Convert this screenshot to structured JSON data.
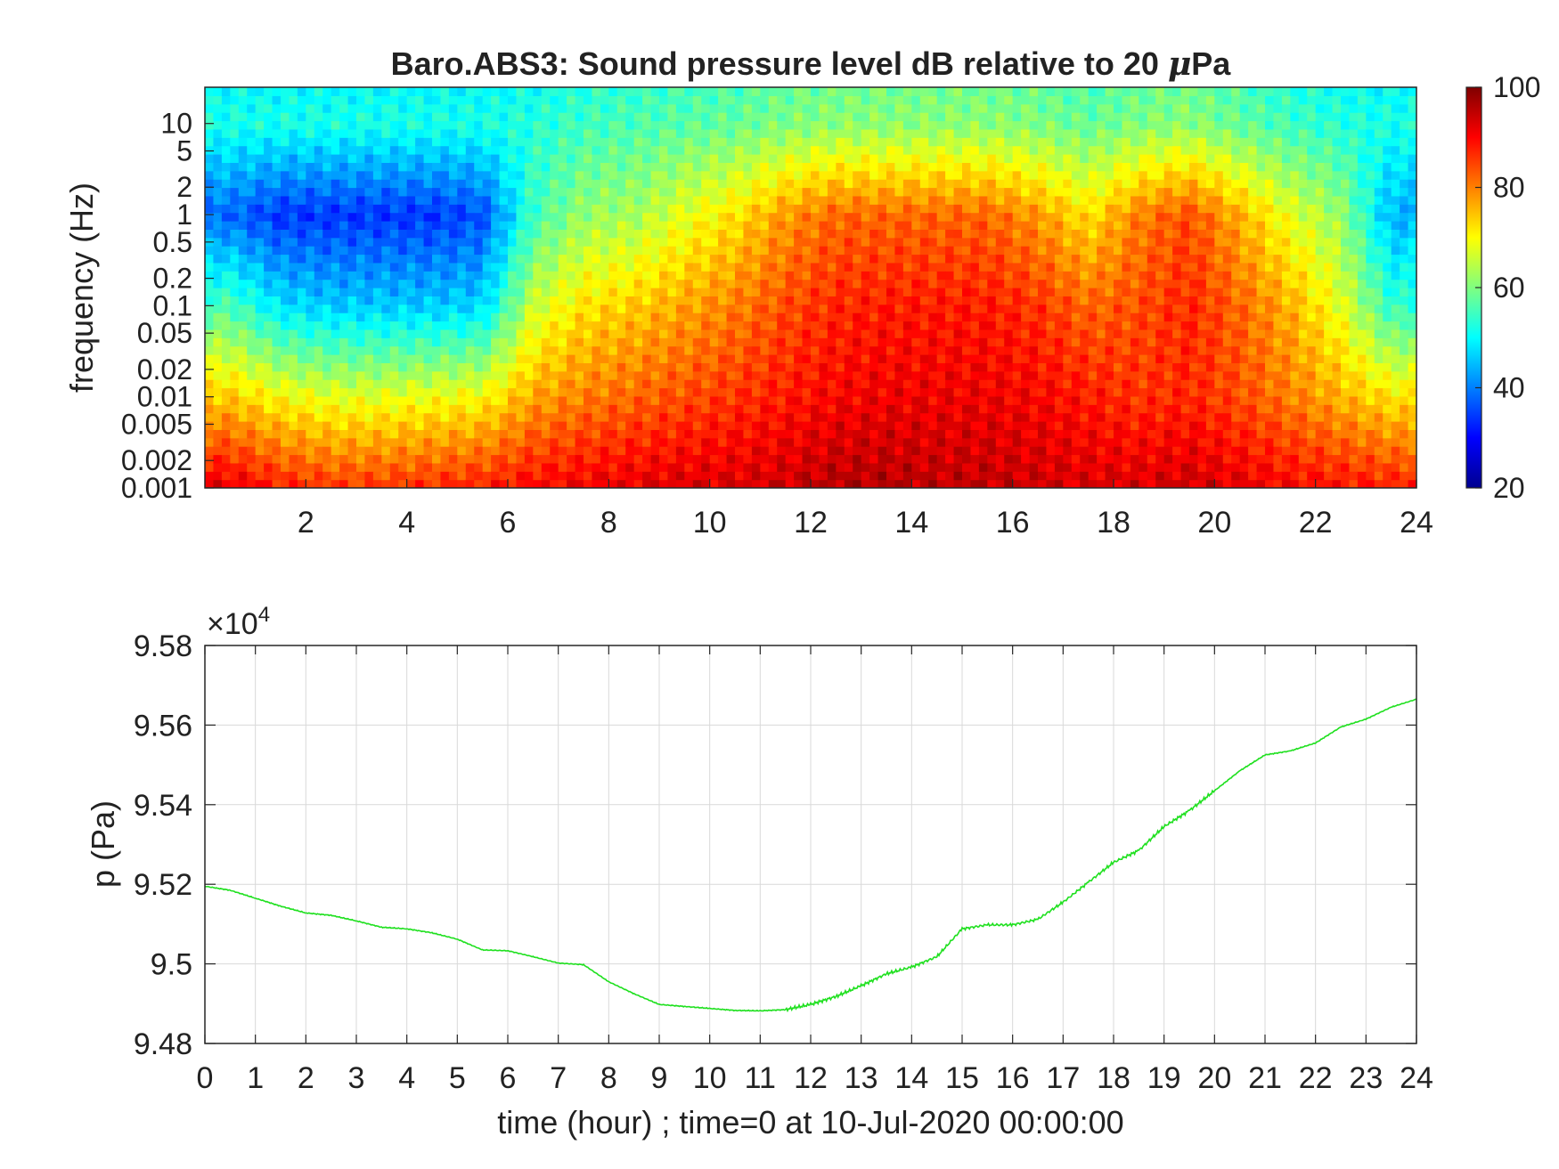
{
  "figure": {
    "title_main": "Baro.ABS3: Sound pressure level dB relative to 20 ",
    "title_mu": "μ",
    "title_end": "Pa"
  },
  "colors": {
    "trace": "#1fe01f",
    "axis": "#262626",
    "grid": "#d9d9d9"
  },
  "chart_data": [
    {
      "type": "heatmap",
      "title": "Baro.ABS3: Sound pressure level dB relative to 20 μPa",
      "xlabel": "",
      "ylabel": "frequency (Hz)",
      "x_range": [
        0,
        24
      ],
      "x_ticks": [
        2,
        4,
        6,
        8,
        10,
        12,
        14,
        16,
        18,
        20,
        22,
        24
      ],
      "x_tick_labels": [
        "2",
        "4",
        "6",
        "8",
        "10",
        "12",
        "14",
        "16",
        "18",
        "20",
        "22",
        "24"
      ],
      "y_scale": "log",
      "y_range": [
        0.001,
        25
      ],
      "y_ticks": [
        0.001,
        0.002,
        0.005,
        0.01,
        0.02,
        0.05,
        0.1,
        0.2,
        0.5,
        1,
        2,
        5,
        10
      ],
      "y_tick_labels": [
        "0.001",
        "0.002",
        "0.005",
        "0.01",
        "0.02",
        "0.05",
        "0.1",
        "0.2",
        "0.5",
        "1",
        "2",
        "5",
        "10"
      ],
      "colorbar": {
        "colormap": "jet",
        "range": [
          20,
          100
        ],
        "ticks": [
          20,
          40,
          60,
          80,
          100
        ],
        "tick_labels": [
          "20",
          "40",
          "60",
          "80",
          "100"
        ]
      },
      "hours": [
        0.5,
        1.5,
        2.5,
        3.5,
        4.5,
        5.5,
        6.5,
        7.5,
        8.5,
        9.5,
        10.5,
        11.5,
        12.5,
        13.5,
        14.5,
        15.5,
        16.5,
        17.5,
        18.5,
        19.5,
        20.5,
        21.5,
        22.5,
        23.5
      ],
      "level_at_0.001Hz_dB": [
        92,
        88,
        86,
        86,
        87,
        88,
        90,
        91,
        92,
        93,
        93,
        94,
        96,
        96,
        95,
        95,
        94,
        93,
        93,
        94,
        92,
        90,
        89,
        88
      ],
      "level_at_0.01Hz_dB": [
        74,
        70,
        68,
        68,
        69,
        70,
        77,
        80,
        82,
        84,
        86,
        88,
        90,
        91,
        91,
        91,
        90,
        88,
        86,
        87,
        84,
        80,
        76,
        72
      ],
      "level_at_0.1Hz_dB": [
        56,
        48,
        46,
        46,
        46,
        47,
        66,
        72,
        74,
        77,
        80,
        84,
        87,
        88,
        88,
        88,
        86,
        82,
        84,
        87,
        82,
        76,
        68,
        54
      ],
      "level_at_1Hz_dB": [
        38,
        34,
        34,
        34,
        34,
        36,
        55,
        62,
        63,
        68,
        72,
        78,
        82,
        82,
        82,
        82,
        78,
        72,
        80,
        84,
        76,
        68,
        62,
        44
      ],
      "level_at_10Hz_dB": [
        52,
        52,
        52,
        52,
        52,
        52,
        53,
        55,
        56,
        57,
        58,
        60,
        61,
        61,
        61,
        61,
        60,
        58,
        60,
        61,
        58,
        55,
        53,
        52
      ]
    },
    {
      "type": "line",
      "title": "",
      "xlabel": "time (hour) ; time=0 at 10-Jul-2020 00:00:00",
      "ylabel": "p (Pa)",
      "y_multiplier_base": "×10",
      "y_multiplier_exp": "4",
      "xlim": [
        0,
        24
      ],
      "ylim": [
        9.48,
        9.58
      ],
      "x_ticks": [
        0,
        1,
        2,
        3,
        4,
        5,
        6,
        7,
        8,
        9,
        10,
        11,
        12,
        13,
        14,
        15,
        16,
        17,
        18,
        19,
        20,
        21,
        22,
        23,
        24
      ],
      "x_tick_labels": [
        "0",
        "1",
        "2",
        "3",
        "4",
        "5",
        "6",
        "7",
        "8",
        "9",
        "10",
        "11",
        "12",
        "13",
        "14",
        "15",
        "16",
        "17",
        "18",
        "19",
        "20",
        "21",
        "22",
        "23",
        "24"
      ],
      "y_ticks": [
        9.48,
        9.5,
        9.52,
        9.54,
        9.56,
        9.58
      ],
      "y_tick_labels": [
        "9.48",
        "9.5",
        "9.52",
        "9.54",
        "9.56",
        "9.58"
      ],
      "grid": true,
      "series": [
        {
          "x": [
            0,
            0.5,
            1,
            1.5,
            2,
            2.5,
            3,
            3.5,
            4,
            4.5,
            5,
            5.5,
            6,
            6.5,
            7,
            7.5,
            8,
            8.5,
            9,
            9.5,
            10,
            10.5,
            11,
            11.5,
            12,
            12.5,
            13,
            13.5,
            14,
            14.5,
            15,
            15.5,
            16,
            16.5,
            17,
            17.5,
            18,
            18.5,
            19,
            19.5,
            20,
            20.5,
            21,
            21.5,
            22,
            22.5,
            23,
            23.5,
            24
          ],
          "y": [
            9.5195,
            9.5185,
            9.5165,
            9.5145,
            9.5128,
            9.5122,
            9.5108,
            9.5092,
            9.5088,
            9.5078,
            9.5062,
            9.5035,
            9.5033,
            9.5018,
            9.5002,
            9.4998,
            9.4955,
            9.4925,
            9.4898,
            9.4893,
            9.4888,
            9.4883,
            9.4882,
            9.4885,
            9.4898,
            9.4918,
            9.4945,
            9.4975,
            9.4992,
            9.5018,
            9.5088,
            9.5098,
            9.5098,
            9.5112,
            9.5155,
            9.5205,
            9.5255,
            9.5285,
            9.5345,
            9.5385,
            9.5435,
            9.5485,
            9.5525,
            9.5535,
            9.5555,
            9.5595,
            9.5615,
            9.5645,
            9.5665
          ]
        }
      ]
    }
  ]
}
